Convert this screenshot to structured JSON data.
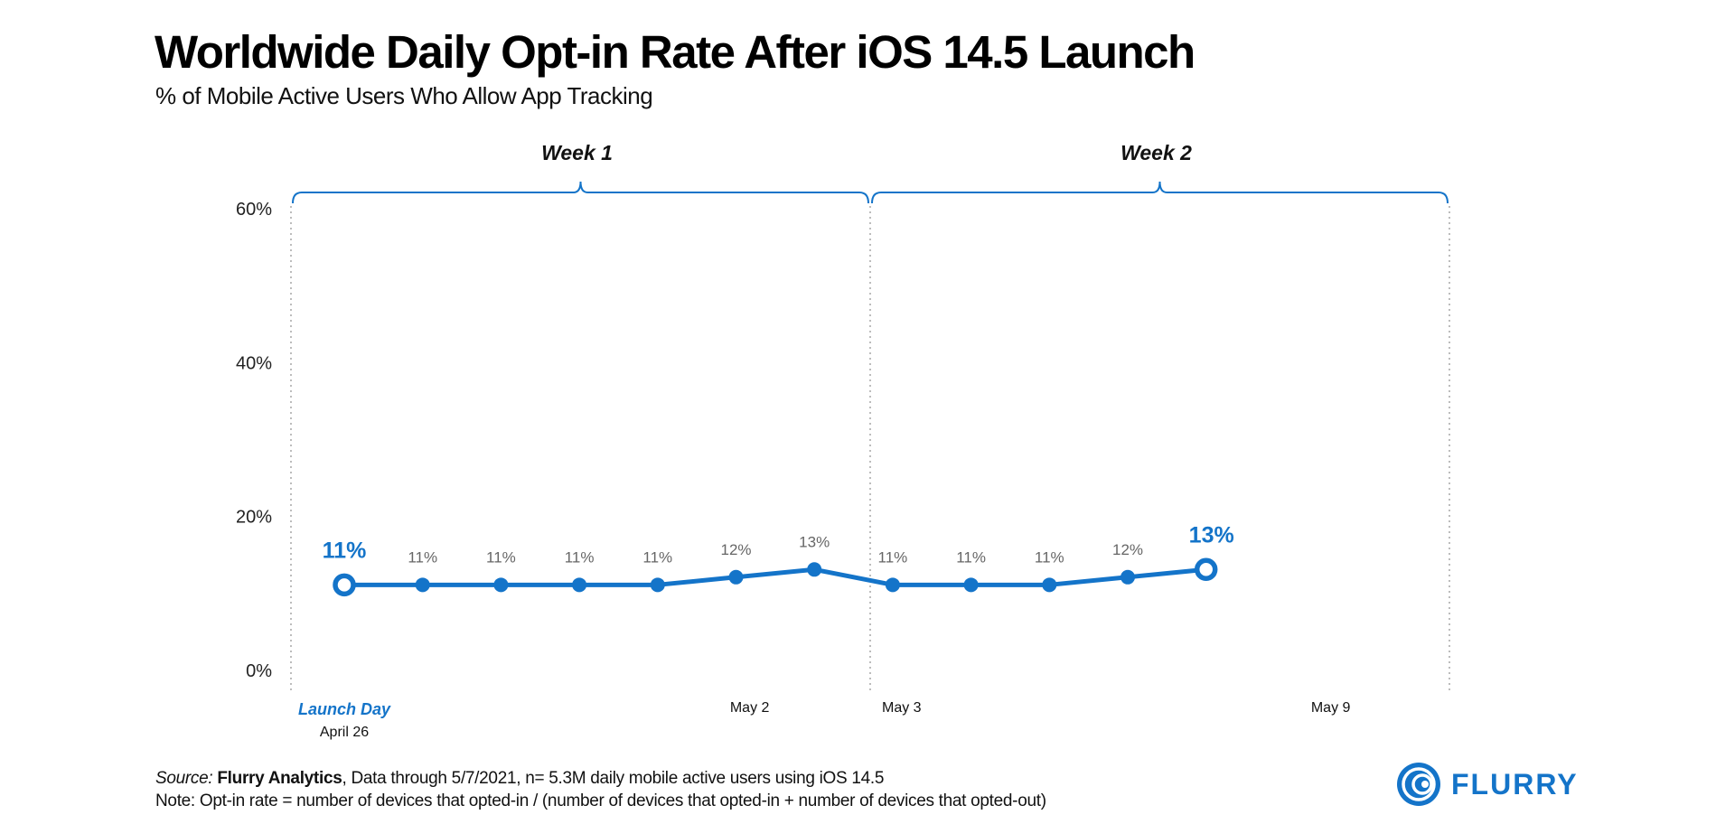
{
  "chart_data": {
    "type": "line",
    "title": "Worldwide Daily Opt-in Rate After iOS 14.5 Launch",
    "subtitle": "% of Mobile Active Users Who Allow App Tracking",
    "ylim": [
      0,
      60
    ],
    "yticks": [
      "0%",
      "20%",
      "40%",
      "60%"
    ],
    "ytick_values": [
      0,
      20,
      40,
      60
    ],
    "x_range": [
      0,
      14
    ],
    "grid": false,
    "groups": [
      {
        "label": "Week 1",
        "start": 0,
        "end": 7
      },
      {
        "label": "Week 2",
        "start": 7,
        "end": 14
      }
    ],
    "x_labels": [
      {
        "x": 0,
        "text": "April 26"
      },
      {
        "x": 6,
        "text": "May 2"
      },
      {
        "x": 7,
        "text": "May 3"
      },
      {
        "x": 13,
        "text": "May 9"
      }
    ],
    "annotations": [
      {
        "x": 0,
        "text": "Launch Day"
      }
    ],
    "series": [
      {
        "name": "Opt-in rate",
        "color": "#1474c9",
        "x": [
          0,
          1,
          2,
          3,
          4,
          5,
          6,
          7,
          8,
          9,
          10,
          11
        ],
        "values": [
          11,
          11,
          11,
          11,
          11,
          12,
          13,
          11,
          11,
          11,
          12,
          13
        ],
        "labels": [
          "11%",
          "11%",
          "11%",
          "11%",
          "11%",
          "12%",
          "13%",
          "11%",
          "11%",
          "11%",
          "12%",
          "13%"
        ]
      }
    ]
  },
  "footer": {
    "source_prefix": "Source:",
    "source_name": "Flurry Analytics",
    "source_rest": ", Data through 5/7/2021, n= 5.3M daily mobile active users using iOS 14.5",
    "note": "Note: Opt-in rate = number of devices that opted-in / (number of devices that opted-in + number of devices that opted-out)"
  },
  "brand": {
    "name": "FLURRY",
    "icon": "flurry-logo-icon",
    "color": "#1474c9"
  }
}
